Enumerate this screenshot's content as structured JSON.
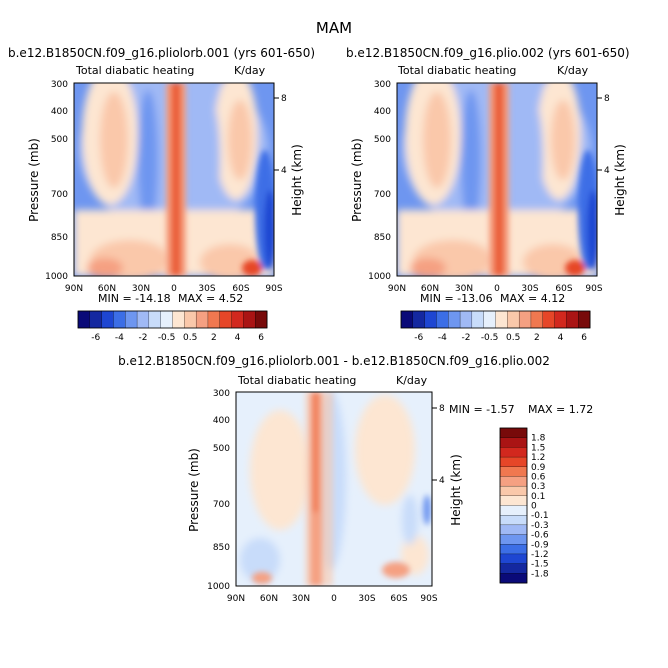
{
  "page": {
    "title": "MAM"
  },
  "panels": [
    {
      "case": "b.e12.B1850CN.f09_g16.pliolorb.001",
      "years": "(yrs 601-650)",
      "variable": "Total diabatic heating",
      "units": "K/day",
      "min_label": "MIN = -14.18",
      "max_label": "MAX =  4.52"
    },
    {
      "case": "b.e12.B1850CN.f09_g16.plio.002",
      "years": "(yrs 601-650)",
      "variable": "Total diabatic heating",
      "units": "K/day",
      "min_label": "MIN = -13.06",
      "max_label": "MAX =  4.12"
    },
    {
      "case": "b.e12.B1850CN.f09_g16.pliolorb.001 - b.e12.B1850CN.f09_g16.plio.002",
      "variable": "Total diabatic heating",
      "units": "K/day",
      "min_label": "MIN = -1.57",
      "max_label": "MAX =  1.72"
    }
  ],
  "colorbars": {
    "abs": {
      "labels": [
        "-6",
        "-4",
        "-2",
        "-0.5",
        "0.5",
        "2",
        "4",
        "6"
      ],
      "colors": [
        "#0a0a78",
        "#1428a0",
        "#1e46d2",
        "#3c6ee6",
        "#6e96f0",
        "#a0b9f5",
        "#c8dcfa",
        "#e6f0fc",
        "#fde6d2",
        "#fac8aa",
        "#f5a082",
        "#f07850",
        "#e64628",
        "#d2281e",
        "#aa1414",
        "#780a0a"
      ]
    },
    "diff": {
      "labels": [
        "1.8",
        "1.5",
        "1.2",
        "0.9",
        "0.6",
        "0.3",
        "0.1",
        "0",
        "-0.1",
        "-0.3",
        "-0.6",
        "-0.9",
        "-1.2",
        "-1.5",
        "-1.8"
      ],
      "colors": [
        "#780a0a",
        "#aa1414",
        "#d2281e",
        "#e64628",
        "#f07850",
        "#f5a082",
        "#fac8aa",
        "#fde6d2",
        "#e6f0fc",
        "#c8dcfa",
        "#a0b9f5",
        "#6e96f0",
        "#3c6ee6",
        "#1e46d2",
        "#1428a0",
        "#0a0a78"
      ]
    }
  },
  "chart_data": [
    {
      "type": "heatmap",
      "title": "Total diabatic heating",
      "xlabel": "",
      "ylabel": "Pressure (mb)",
      "y2label": "Height (km)",
      "x_ticks": [
        "90N",
        "60N",
        "30N",
        "0",
        "30S",
        "60S",
        "90S"
      ],
      "y_ticks": [
        "300",
        "400",
        "500",
        "700",
        "850",
        "1000"
      ],
      "y2_ticks": [
        "8",
        "4"
      ],
      "ylim": [
        1000,
        300
      ],
      "min": -14.18,
      "max": 4.52
    },
    {
      "type": "heatmap",
      "title": "Total diabatic heating",
      "xlabel": "",
      "ylabel": "Pressure (mb)",
      "y2label": "Height (km)",
      "x_ticks": [
        "90N",
        "60N",
        "30N",
        "0",
        "30S",
        "60S",
        "90S"
      ],
      "y_ticks": [
        "300",
        "400",
        "500",
        "700",
        "850",
        "1000"
      ],
      "y2_ticks": [
        "8",
        "4"
      ],
      "ylim": [
        1000,
        300
      ],
      "min": -13.06,
      "max": 4.12
    },
    {
      "type": "heatmap",
      "title": "Total diabatic heating",
      "xlabel": "",
      "ylabel": "Pressure (mb)",
      "y2label": "Height (km)",
      "x_ticks": [
        "90N",
        "60N",
        "30N",
        "0",
        "30S",
        "60S",
        "90S"
      ],
      "y_ticks": [
        "300",
        "400",
        "500",
        "700",
        "850",
        "1000"
      ],
      "y2_ticks": [
        "8",
        "4"
      ],
      "ylim": [
        1000,
        300
      ],
      "min": -1.57,
      "max": 1.72
    }
  ]
}
